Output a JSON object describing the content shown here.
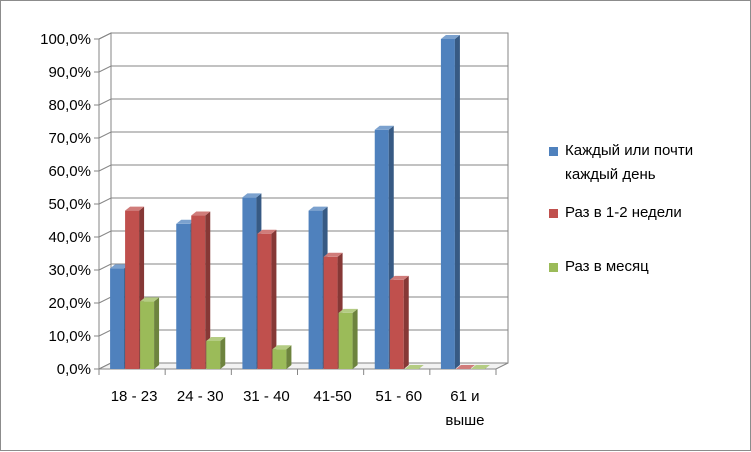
{
  "chart_data": {
    "type": "bar",
    "title": "",
    "xlabel": "",
    "ylabel": "",
    "ylim": [
      0,
      100
    ],
    "y_tick_step": 10,
    "y_tick_format": "percent-1-decimal-comma",
    "grid": true,
    "legend_position": "right",
    "categories": [
      "18 - 23",
      "24 - 30",
      "31 - 40",
      "41-50",
      "51 - 60",
      "61 и выше"
    ],
    "y_ticks": [
      "0,0%",
      "10,0%",
      "20,0%",
      "30,0%",
      "40,0%",
      "50,0%",
      "60,0%",
      "70,0%",
      "80,0%",
      "90,0%",
      "100,0%"
    ],
    "series": [
      {
        "name": "Каждый или почти каждый день",
        "color": "#4f81bd",
        "values": [
          30.5,
          44.0,
          52.0,
          48.0,
          72.5,
          100.0
        ]
      },
      {
        "name": "Раз в 1-2 недели",
        "color": "#c0504d",
        "values": [
          48.0,
          46.5,
          41.0,
          34.0,
          27.0,
          0
        ]
      },
      {
        "name": "Раз в месяц",
        "color": "#9bbb59",
        "values": [
          20.5,
          8.5,
          6.0,
          17.0,
          0,
          0
        ]
      }
    ]
  }
}
